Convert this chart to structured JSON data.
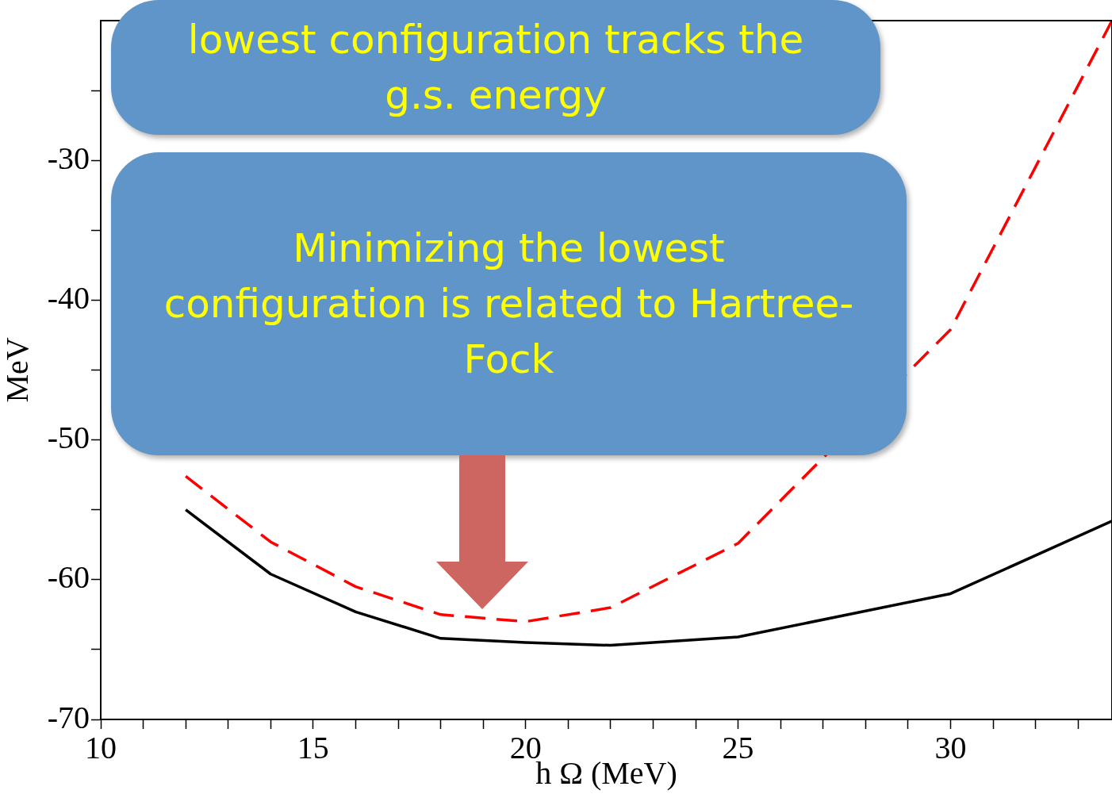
{
  "chart_data": {
    "type": "line",
    "xlabel": "h Ω (MeV)",
    "ylabel": "MeV",
    "annotations": [
      "lowest configuration tracks the g.s. energy",
      "Minimizing the lowest configuration is related to Hartree-Fock"
    ],
    "x": [
      12,
      14,
      16,
      18,
      20,
      22,
      25,
      30,
      33.8
    ],
    "series": [
      {
        "color": "#000000",
        "line_style": "solid",
        "values": [
          -55,
          -59.6,
          -62.3,
          -64.2,
          -64.5,
          -64.7,
          -64.1,
          -61,
          -55.8
        ]
      },
      {
        "color": "#ff0000",
        "line_style": "dashed",
        "values": [
          -52.6,
          -57.3,
          -60.5,
          -62.5,
          -63,
          -62,
          -57.4,
          -42.1,
          -20
        ]
      }
    ],
    "xlim": [
      10,
      33.8
    ],
    "xticks": [
      10,
      {
        "value": 11,
        "label": null
      },
      {
        "value": 12,
        "label": null
      },
      {
        "value": 13,
        "label": null
      },
      {
        "value": 14,
        "label": null
      },
      15,
      {
        "value": 16,
        "label": null
      },
      {
        "value": 17,
        "label": null
      },
      {
        "value": 18,
        "label": null
      },
      {
        "value": 19,
        "label": null
      },
      20,
      {
        "value": 21,
        "label": null
      },
      {
        "value": 22,
        "label": null
      },
      {
        "value": 23,
        "label": null
      },
      {
        "value": 24,
        "label": null
      },
      25,
      {
        "value": 26,
        "label": null
      },
      {
        "value": 27,
        "label": null
      },
      {
        "value": 28,
        "label": null
      },
      {
        "value": 29,
        "label": null
      },
      30,
      {
        "value": 31,
        "label": null
      },
      {
        "value": 32,
        "label": null
      },
      {
        "value": 33,
        "label": null
      }
    ],
    "ylim": [
      -70,
      -20
    ],
    "yticks": [
      -70,
      {
        "value": -65,
        "label": null
      },
      -60,
      {
        "value": -55,
        "label": null
      },
      -50,
      {
        "value": -45,
        "label": null
      },
      -40,
      {
        "value": -35,
        "label": null
      },
      -30,
      {
        "value": -25,
        "label": null
      }
    ],
    "grid": false,
    "legend": false,
    "marker": "none"
  }
}
